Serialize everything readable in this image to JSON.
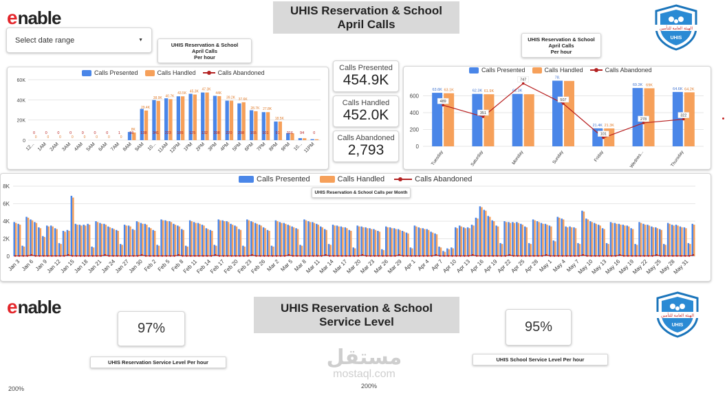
{
  "header": {
    "logo_text": "nable",
    "title_line1": "UHIS Reservation & School",
    "title_line2": "April Calls",
    "date_range_label": "Select date range",
    "org_logo_text": "UHIS"
  },
  "kpis": [
    {
      "label": "Calls Presented",
      "value": "454.9K"
    },
    {
      "label": "Calls Handled",
      "value": "452.0K"
    },
    {
      "label": "Calls Abandoned",
      "value": "2,793"
    }
  ],
  "legend": {
    "presented": "Calls Presented",
    "handled": "Calls Handled",
    "abandoned": "Calls Abandoned"
  },
  "colors": {
    "presented": "#4a86e8",
    "handled": "#f6a05a",
    "abandoned": "#b71c1c"
  },
  "hourly_chart": {
    "title_line1": "UHIS Reservation & School",
    "title_line2": "April Calls",
    "title_line3": "Per hour"
  },
  "daily_chart": {
    "title_line1": "UHIS Reservation & School",
    "title_line2": "April Calls",
    "title_line3": "Per hour"
  },
  "monthly_chart": {
    "title": "UHIS Reservation & School Calls per Month"
  },
  "section2": {
    "logo_text": "nable",
    "title_line1": "UHIS Reservation & School",
    "title_line2": "Service Level",
    "reservation_sl": "97%",
    "school_sl": "95%",
    "reservation_label": "UHIS Reservation Service Level  Per hour",
    "school_label": "UHIS School Service Level Per hour",
    "axis_top_left": "200%",
    "axis_top_mid": "200%"
  },
  "watermark": {
    "line1": "مستقل",
    "line2": "mostaql.com"
  },
  "chart_data": [
    {
      "type": "bar",
      "name": "hourly",
      "categories": [
        "12...",
        "1AM",
        "2AM",
        "3AM",
        "4AM",
        "5AM",
        "6AM",
        "7AM",
        "8AM",
        "9AM",
        "10...",
        "11AM",
        "12PM",
        "1PM",
        "2PM",
        "3PM",
        "4PM",
        "5PM",
        "6PM",
        "7PM",
        "8PM",
        "9PM",
        "10...",
        "11PM"
      ],
      "series": [
        {
          "name": "Calls Presented",
          "values": [
            0,
            0,
            0,
            0,
            0,
            0,
            0,
            0,
            8100,
            31000,
            39800,
            41500,
            43500,
            46000,
            47300,
            44000,
            39200,
            36500,
            29700,
            27800,
            18500,
            7000,
            2000,
            1000
          ]
        },
        {
          "name": "Calls Handled",
          "values": [
            0,
            0,
            0,
            0,
            0,
            0,
            0,
            0,
            7600,
            29400,
            38900,
            40700,
            43500,
            45300,
            47300,
            43700,
            39200,
            37600,
            28700,
            27800,
            18500,
            6800,
            1900,
            900
          ]
        },
        {
          "name": "Calls Abandoned",
          "values": [
            0,
            0,
            0,
            0,
            0,
            0,
            0,
            1,
            18,
            138,
            341,
            223,
            185,
            125,
            132,
            398,
            220,
            298,
            155,
            101,
            91,
            316,
            94,
            0
          ]
        }
      ],
      "point_labels_presented": [
        "0",
        "0",
        "0",
        "0",
        "0",
        "0",
        "0",
        "0",
        "8.1",
        "31",
        "",
        "",
        "",
        "",
        "",
        "",
        "",
        "",
        "",
        "",
        "",
        "",
        "",
        ""
      ],
      "point_labels_handled": [
        "0",
        "0",
        "0",
        "0",
        "0",
        "0",
        "0",
        "0",
        "8K",
        "29.4K",
        "38.9K",
        "40.7K",
        "43.5K",
        "45.3K",
        "47.3K",
        "44K",
        "39.2K",
        "37.6K",
        "28.7K",
        "27.8K",
        "18.5K",
        "",
        "",
        ""
      ],
      "ylim": [
        0,
        60000
      ],
      "yticks": [
        "0",
        "20K",
        "40K",
        "60K"
      ]
    },
    {
      "type": "bar",
      "name": "weekday",
      "categories": [
        "Tuesday",
        "Saturday",
        "Monday",
        "Sunday",
        "Friday",
        "Wednes...",
        "Thursday"
      ],
      "series": [
        {
          "name": "Calls Presented",
          "values": [
            63600,
            62300,
            62300,
            78000,
            21400,
            69300,
            64600
          ]
        },
        {
          "name": "Calls Handled",
          "values": [
            63100,
            61900,
            61900,
            77700,
            21300,
            69000,
            64200
          ]
        },
        {
          "name": "Calls Abandoned",
          "values": [
            489,
            351,
            747,
            507,
            101,
            278,
            322
          ]
        }
      ],
      "presented_labels": [
        "63.6K",
        "62.3K",
        "62.3K",
        "78.",
        "21.4K",
        "69.3K",
        "64.6K"
      ],
      "handled_labels": [
        "63.1K",
        "61.9K",
        "",
        "",
        "21.3K",
        "69K",
        "64.2K"
      ],
      "ylim": [
        0,
        800
      ],
      "yticks": [
        "0",
        "200",
        "400",
        "600"
      ]
    },
    {
      "type": "bar",
      "name": "daily",
      "x_tick_labels": [
        "Jan 3",
        "Jan 6",
        "Jan 9",
        "Jan 12",
        "Jan 15",
        "Jan 18",
        "Jan 21",
        "Jan 24",
        "Jan 27",
        "Jan 30",
        "Feb 2",
        "Feb 5",
        "Feb 8",
        "Feb 11",
        "Feb 14",
        "Feb 17",
        "Feb 20",
        "Feb 23",
        "Feb 26",
        "Mar 2",
        "Mar 5",
        "Mar 8",
        "Mar 11",
        "Mar 14",
        "Mar 17",
        "Mar 20",
        "Mar 23",
        "Mar 26",
        "Mar 29",
        "Apr 1",
        "Apr 4",
        "Apr 7",
        "Apr 10",
        "Apr 13",
        "Apr 16",
        "Apr 19",
        "Apr 22",
        "Apr 25",
        "Apr 28",
        "May 1",
        "May 4",
        "May 7",
        "May 10",
        "May 13",
        "May 16",
        "May 19",
        "May 22",
        "May 25",
        "May 28",
        "May 31"
      ],
      "series": [
        {
          "name": "Calls Presented",
          "values": [
            3900,
            3700,
            1200,
            4500,
            4200,
            3900,
            3300,
            2300,
            3500,
            3500,
            3200,
            1500,
            2900,
            3000,
            6900,
            3700,
            3600,
            3600,
            3700,
            1100,
            4000,
            3800,
            3700,
            3400,
            3200,
            3000,
            1400,
            3600,
            3500,
            3100,
            4000,
            3800,
            3700,
            3300,
            3000,
            1300,
            4200,
            4100,
            4000,
            3700,
            3500,
            3100,
            1200,
            4100,
            3900,
            3800,
            3600,
            3200,
            3000,
            1300,
            4200,
            4100,
            4000,
            3700,
            3500,
            3100,
            1200,
            4200,
            4000,
            3800,
            3600,
            3300,
            3000,
            1200,
            4100,
            3900,
            3800,
            3600,
            3400,
            3200,
            1300,
            4200,
            4000,
            3900,
            3700,
            3400,
            3100,
            1400,
            3600,
            3500,
            3400,
            3300,
            3000,
            1000,
            3500,
            3400,
            3300,
            3200,
            3100,
            2900,
            800,
            3400,
            3300,
            3200,
            3100,
            2900,
            2700,
            1000,
            3500,
            3300,
            3200,
            3100,
            2800,
            2600,
            1100,
            600,
            900,
            1000,
            3300,
            3500,
            3300,
            3300,
            3600,
            4400,
            5700,
            5300,
            4600,
            4100,
            3500,
            1500,
            4000,
            3900,
            3900,
            3900,
            3700,
            3400,
            1500,
            4200,
            4000,
            3800,
            3700,
            3500,
            1800,
            4500,
            4300,
            3400,
            3400,
            3300,
            1500,
            5200,
            4300,
            4000,
            3800,
            3600,
            3200,
            1500,
            3900,
            3800,
            3700,
            3600,
            3500,
            3200,
            1400,
            3900,
            3700,
            3600,
            3400,
            3300,
            3100,
            1400,
            3800,
            3600,
            3600,
            3400,
            3300,
            1500,
            3700
          ]
        },
        {
          "name": "Calls Handled",
          "values": [
            3800,
            3600,
            1100,
            4400,
            4100,
            3800,
            3200,
            2200,
            3400,
            3400,
            3100,
            1400,
            2800,
            2900,
            6700,
            3600,
            3500,
            3500,
            3600,
            1000,
            3900,
            3700,
            3600,
            3300,
            3100,
            2900,
            1300,
            3500,
            3400,
            3000,
            3900,
            3700,
            3600,
            3200,
            2900,
            1200,
            4100,
            4000,
            3900,
            3600,
            3400,
            3000,
            1100,
            4000,
            3800,
            3700,
            3500,
            3100,
            2900,
            1200,
            4100,
            4000,
            3900,
            3600,
            3400,
            3000,
            1100,
            4100,
            3900,
            3700,
            3500,
            3200,
            2900,
            1100,
            4000,
            3800,
            3700,
            3500,
            3300,
            3100,
            1200,
            4100,
            3900,
            3800,
            3600,
            3300,
            3000,
            1300,
            3500,
            3400,
            3300,
            3200,
            2900,
            900,
            3400,
            3300,
            3200,
            3100,
            3000,
            2800,
            700,
            3300,
            3200,
            3100,
            3000,
            2800,
            2600,
            900,
            3400,
            3200,
            3100,
            3000,
            2700,
            2500,
            1000,
            500,
            800,
            900,
            3200,
            3400,
            3200,
            3200,
            3500,
            4300,
            5600,
            5200,
            4500,
            4000,
            3400,
            1400,
            3900,
            3800,
            3800,
            3800,
            3600,
            3300,
            1400,
            4100,
            3900,
            3700,
            3600,
            3400,
            1700,
            4400,
            4200,
            3300,
            3300,
            3200,
            1400,
            5100,
            4200,
            3900,
            3700,
            3500,
            3100,
            1400,
            3800,
            3700,
            3600,
            3500,
            3400,
            3100,
            1300,
            3800,
            3600,
            3500,
            3300,
            3200,
            3000,
            1300,
            3700,
            3500,
            3500,
            3300,
            3200,
            1400,
            3600
          ]
        },
        {
          "name": "Calls Abandoned",
          "values": []
        }
      ],
      "ylim": [
        0,
        8000
      ],
      "yticks": [
        "0",
        "2K",
        "4K",
        "6K",
        "8K"
      ]
    }
  ]
}
